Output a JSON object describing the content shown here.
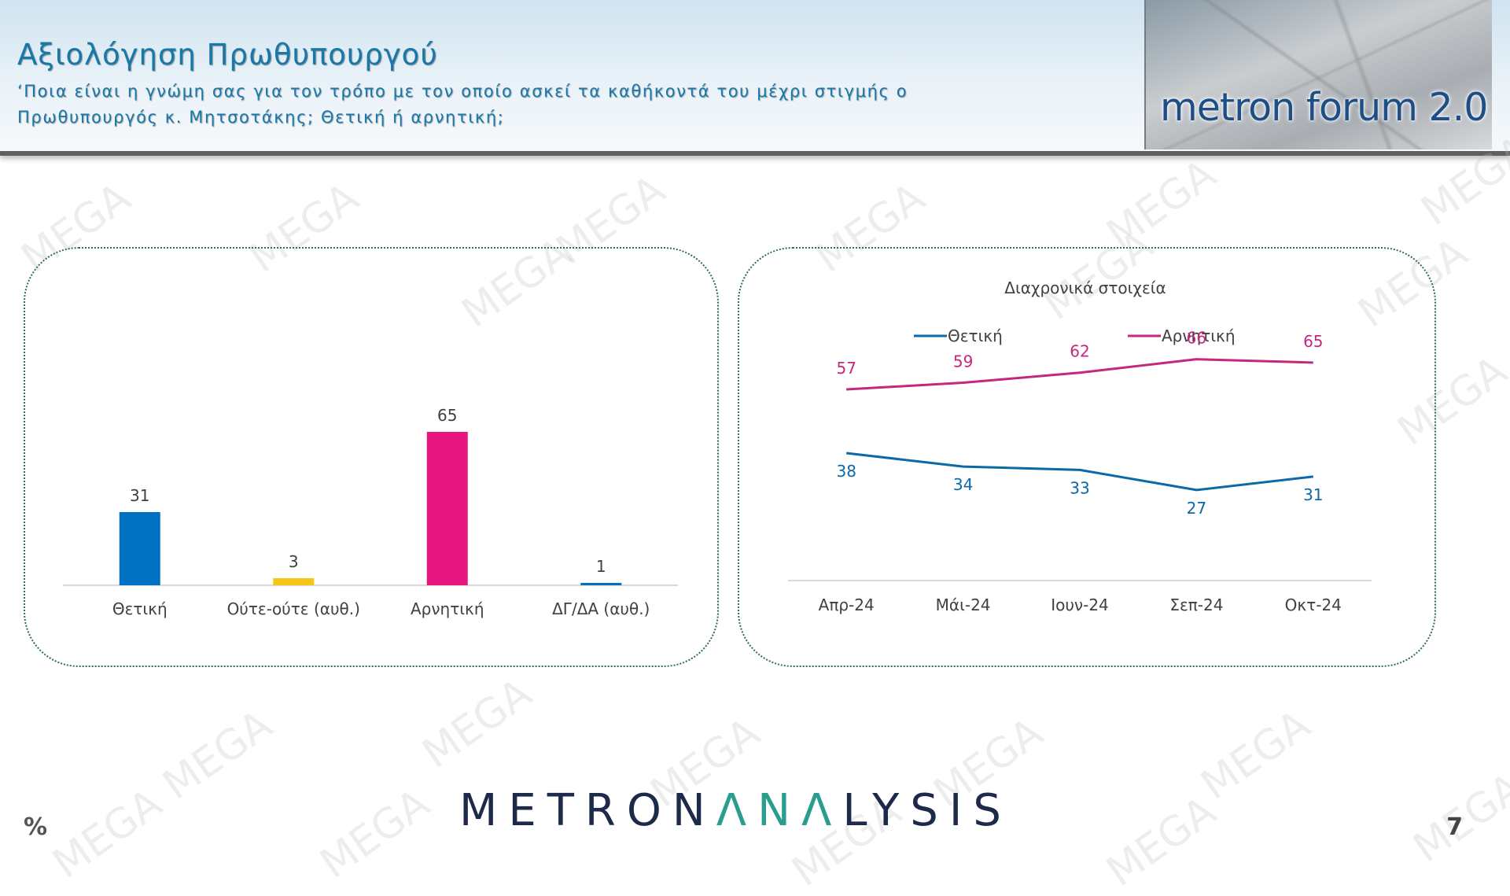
{
  "header": {
    "title": "Αξιολόγηση Πρωθυπουργού",
    "subtitle": "‘Ποια είναι η γνώμη σας για τον τρόπο με τον οποίο ασκεί τα καθήκοντά του μέχρι στιγμής ο Πρωθυπουργός κ. Μητσοτάκης; Θετική ή αρνητική;",
    "banner_text": "metron forum 2.0"
  },
  "watermark_text": "MEGA",
  "footer": {
    "logo_part1": "METRON",
    "logo_part2": "ΛNΛ",
    "logo_part3": "LYSIS",
    "unit_label": "%",
    "page_number": "7"
  },
  "chart_data": [
    {
      "type": "bar",
      "categories": [
        "Θετική",
        "Ούτε-ούτε (αυθ.)",
        "Αρνητική",
        "ΔΓ/ΔΑ (αυθ.)"
      ],
      "values": [
        31,
        3,
        65,
        1
      ],
      "value_labels": [
        "31",
        "3",
        "65",
        "1"
      ],
      "colors": [
        "#0070c0",
        "#f5c518",
        "#e8177f",
        "#0070c0"
      ],
      "ylim": [
        0,
        100
      ],
      "grid": false
    },
    {
      "type": "line",
      "title": "Διαχρονικά στοιχεία",
      "categories": [
        "Απρ-24",
        "Μάι-24",
        "Ιουν-24",
        "Σεπ-24",
        "Οκτ-24"
      ],
      "series": [
        {
          "name": "Θετική",
          "values": [
            38,
            34,
            33,
            27,
            31
          ],
          "labels": [
            "38",
            "34",
            "33",
            "27",
            "31"
          ],
          "color": "#0b69a8"
        },
        {
          "name": "Αρνητική",
          "values": [
            57,
            59,
            62,
            66,
            65
          ],
          "labels": [
            "57",
            "59",
            "62",
            "66",
            "65"
          ],
          "color": "#c4287c"
        }
      ],
      "ylim": [
        0,
        80
      ],
      "legend": "top",
      "grid": false
    }
  ]
}
